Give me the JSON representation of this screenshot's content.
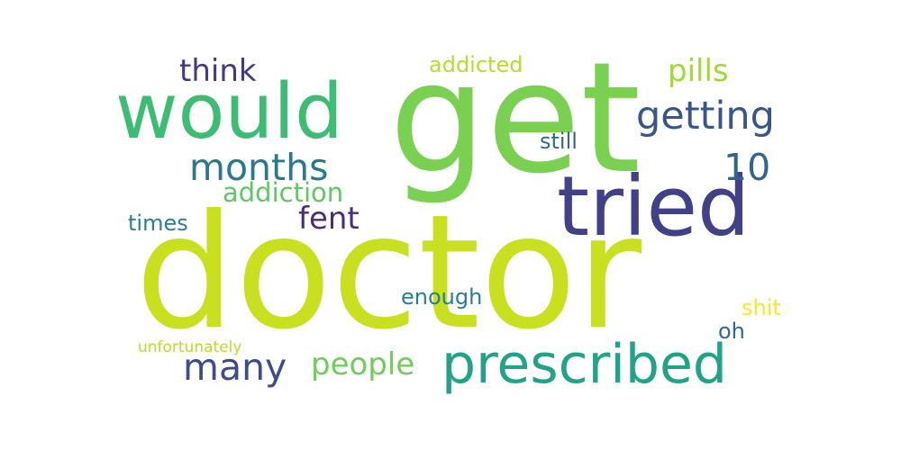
{
  "words": [
    {
      "text": "doctor",
      "color": "#c8e020"
    },
    {
      "text": "get",
      "color": "#7ad151"
    },
    {
      "text": "would",
      "color": "#3dbc74"
    },
    {
      "text": "tried",
      "color": "#424086"
    },
    {
      "text": "prescribed",
      "color": "#20a386"
    },
    {
      "text": "getting",
      "color": "#39568c"
    },
    {
      "text": "months",
      "color": "#2a788e"
    },
    {
      "text": "many",
      "color": "#3e4c8a"
    },
    {
      "text": "10",
      "color": "#32648e"
    },
    {
      "text": "think",
      "color": "#443a83"
    },
    {
      "text": "pills",
      "color": "#a0da39"
    },
    {
      "text": "people",
      "color": "#6ece58"
    },
    {
      "text": "addiction",
      "color": "#5ec962"
    },
    {
      "text": "fent",
      "color": "#472d7b"
    },
    {
      "text": "addicted",
      "color": "#b5de2b"
    },
    {
      "text": "still",
      "color": "#31688e"
    },
    {
      "text": "enough",
      "color": "#277f8e"
    },
    {
      "text": "times",
      "color": "#26828e"
    },
    {
      "text": "shit",
      "color": "#fde725"
    },
    {
      "text": "oh",
      "color": "#31688e"
    },
    {
      "text": "unfortunately",
      "color": "#b5de2b"
    }
  ]
}
